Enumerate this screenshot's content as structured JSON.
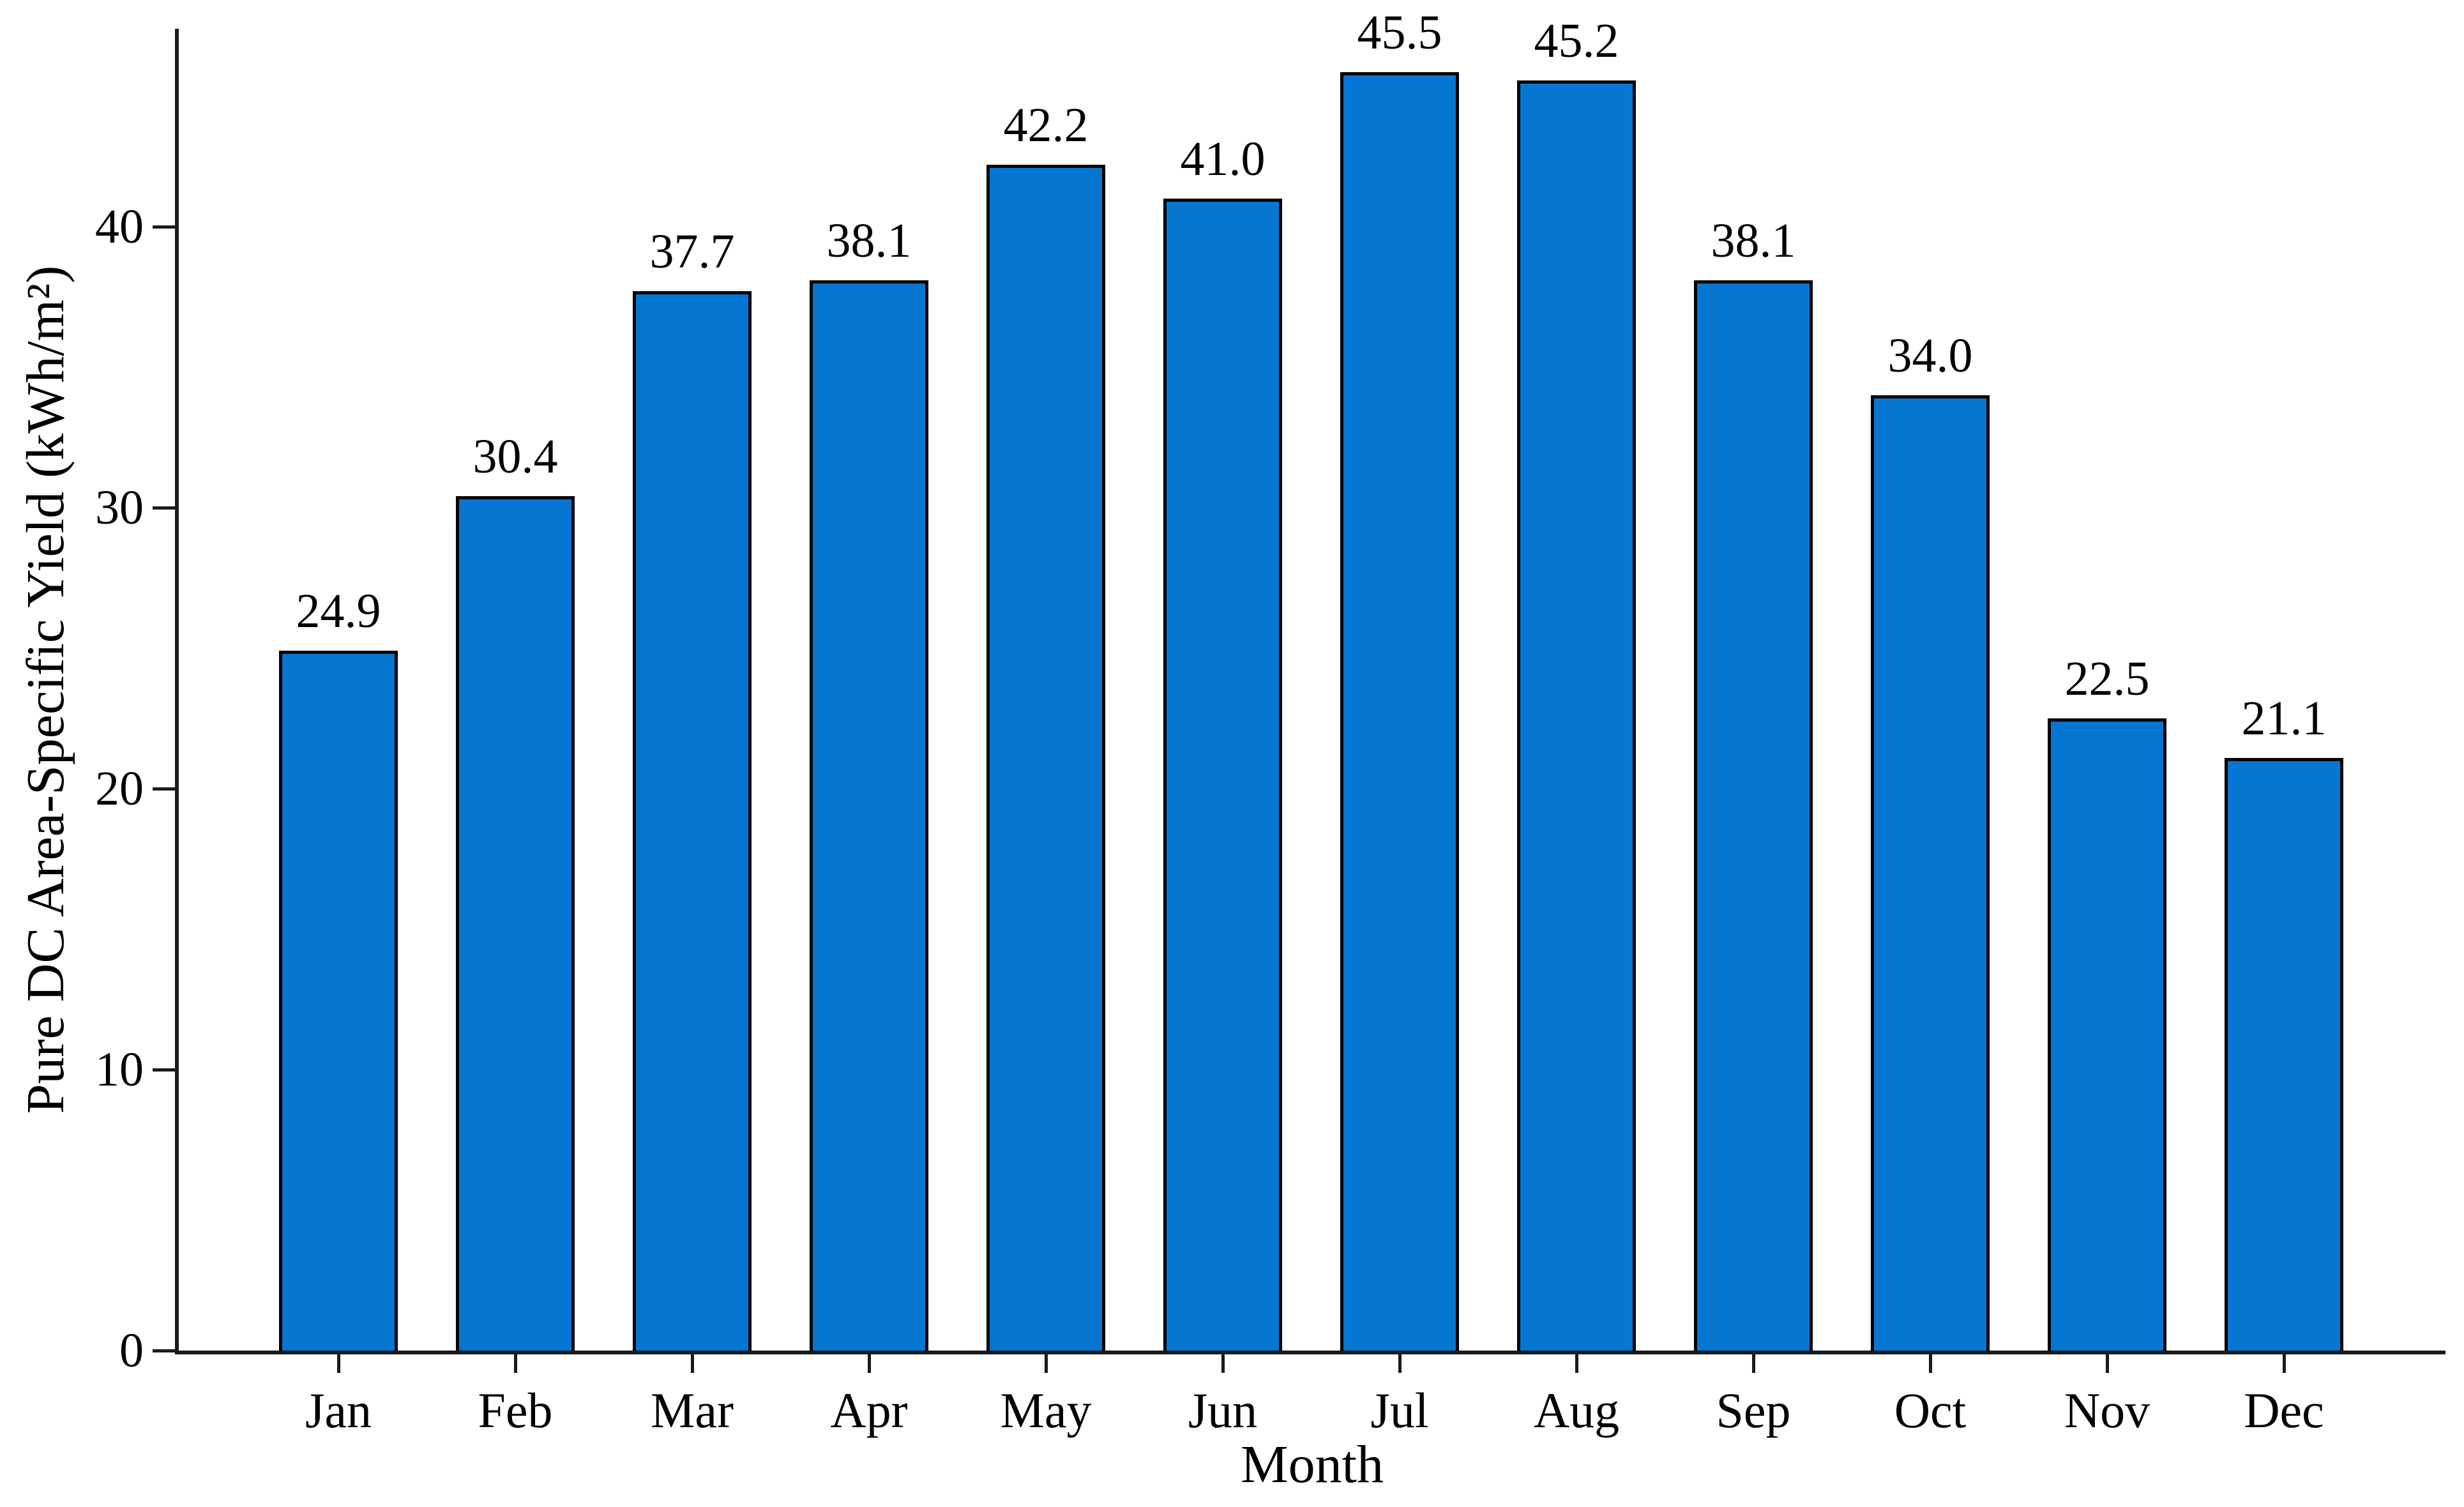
{
  "chart_data": {
    "type": "bar",
    "title": "",
    "xlabel": "Month",
    "ylabel": "Pure DC Area-Specific Yield (kWh/m²)",
    "categories": [
      "Jan",
      "Feb",
      "Mar",
      "Apr",
      "May",
      "Jun",
      "Jul",
      "Aug",
      "Sep",
      "Oct",
      "Nov",
      "Dec"
    ],
    "values": [
      24.9,
      30.4,
      37.7,
      38.1,
      42.2,
      41.0,
      45.5,
      45.2,
      38.1,
      34.0,
      22.5,
      21.1
    ],
    "bar_value_labels": [
      "24.9",
      "30.4",
      "37.7",
      "38.1",
      "42.2",
      "41.0",
      "45.5",
      "45.2",
      "38.1",
      "34.0",
      "22.5",
      "21.1"
    ],
    "yticks": [
      0,
      10,
      20,
      30,
      40
    ],
    "ylim": [
      0,
      47
    ],
    "grid": false,
    "legend": "none",
    "bar_fill_color": "#0577d2",
    "bar_edge_color": "#000000",
    "axis_color": "#1a1a1a",
    "text_color": "#000000"
  }
}
